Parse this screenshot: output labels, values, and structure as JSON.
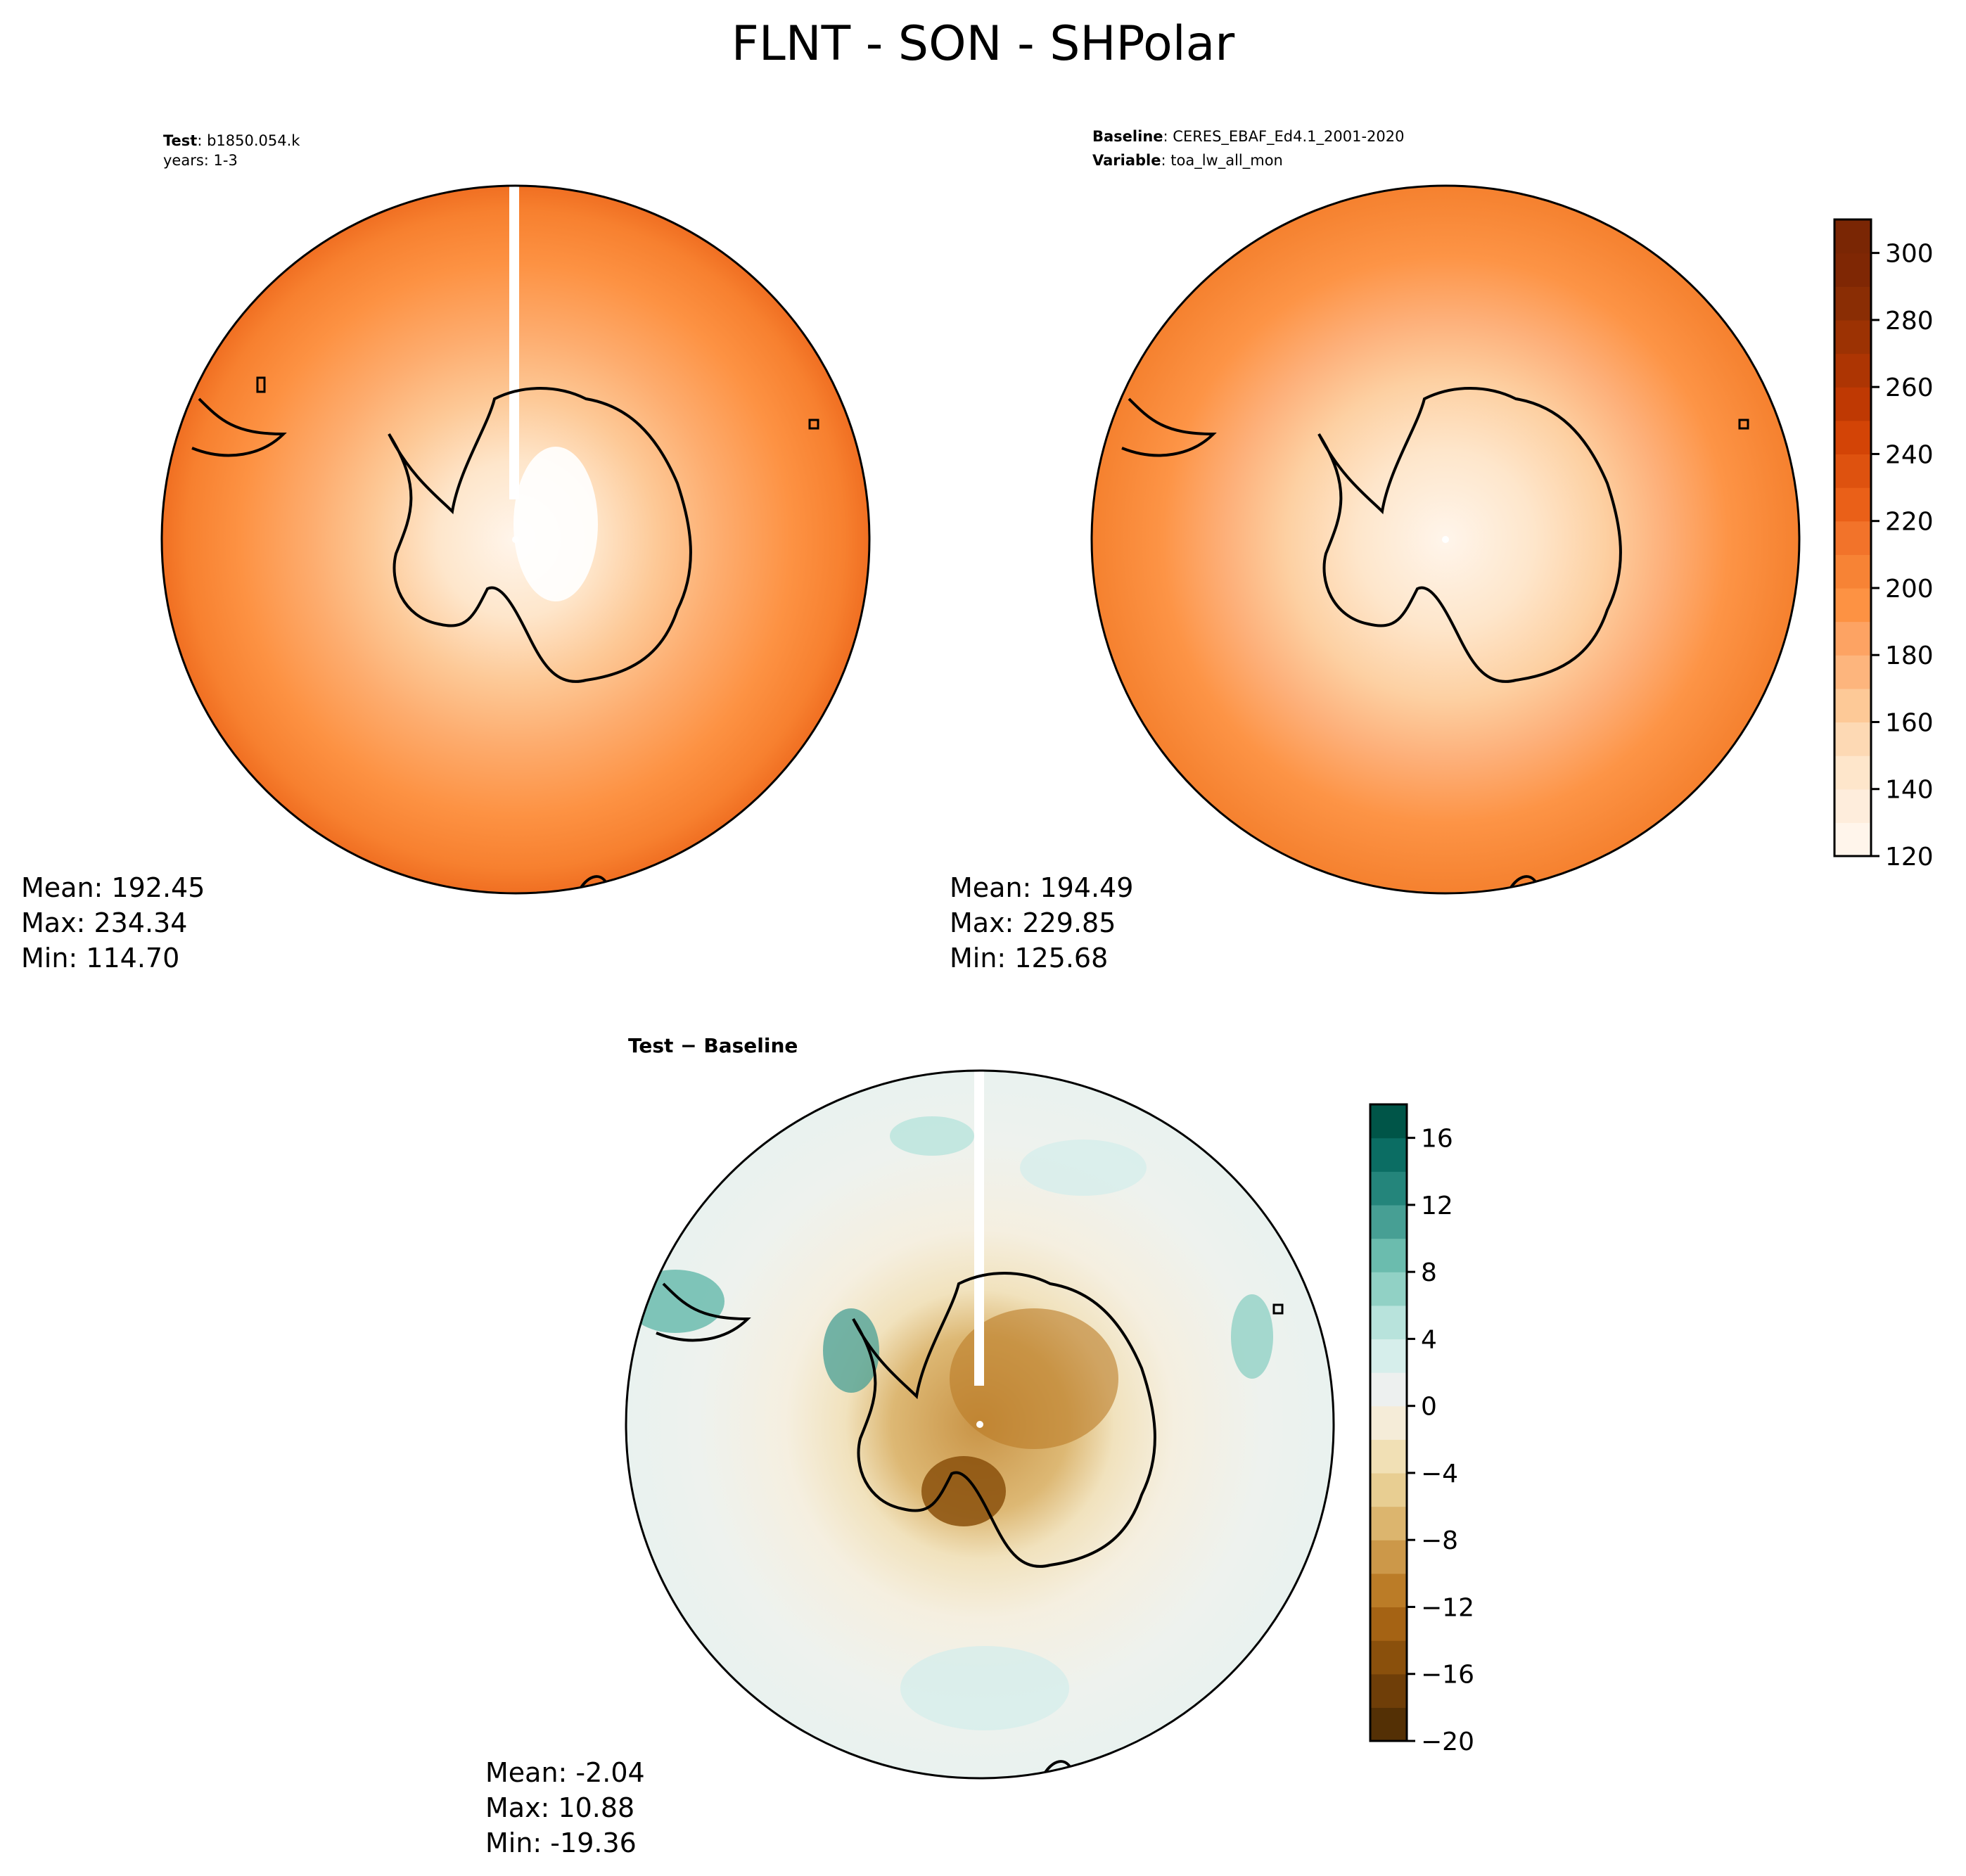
{
  "title": "FLNT - SON - SHPolar",
  "panels": {
    "test": {
      "label_key": "Test",
      "label_value": "b1850.054.k",
      "label_line2": "years: 1-3",
      "stats": {
        "mean": "Mean: 192.45",
        "max": "Max: 234.34",
        "min": "Min: 114.70"
      }
    },
    "baseline": {
      "label_key": "Baseline",
      "label_value": "CERES_EBAF_Ed4.1_2001-2020",
      "label_key2": "Variable",
      "label_value2": "toa_lw_all_mon",
      "stats": {
        "mean": "Mean: 194.49",
        "max": "Max: 229.85",
        "min": "Min: 125.68"
      }
    },
    "diff": {
      "title": "Test − Baseline",
      "stats": {
        "mean": "Mean: -2.04",
        "max": "Max: 10.88",
        "min": "Min: -19.36"
      }
    }
  },
  "chart_data": [
    {
      "type": "heatmap",
      "panel": "test",
      "projection": "south-polar-stereographic",
      "mean": 192.45,
      "max": 234.34,
      "min": 114.7,
      "colormap": "Oranges",
      "vmin": 120,
      "vmax": 310
    },
    {
      "type": "heatmap",
      "panel": "baseline",
      "projection": "south-polar-stereographic",
      "mean": 194.49,
      "max": 229.85,
      "min": 125.68,
      "colormap": "Oranges",
      "vmin": 120,
      "vmax": 310,
      "colorbar": {
        "ticks": [
          120,
          140,
          160,
          180,
          200,
          220,
          240,
          260,
          280,
          300
        ],
        "tick_labels": [
          "120",
          "140",
          "160",
          "180",
          "200",
          "220",
          "240",
          "260",
          "280",
          "300"
        ],
        "range": [
          120,
          310
        ],
        "colors": [
          "#fff5eb",
          "#feeddc",
          "#fee6cb",
          "#fdd9b4",
          "#fdc997",
          "#fdb57d",
          "#fda363",
          "#fd9243",
          "#f78335",
          "#f2732a",
          "#ea6018",
          "#de520f",
          "#d34406",
          "#bf3903",
          "#ad3503",
          "#9c3203",
          "#8a2d04",
          "#7f2704",
          "#7a2604"
        ]
      },
      "map_colors": {
        "coast": "#000000"
      }
    },
    {
      "type": "heatmap",
      "panel": "diff",
      "projection": "south-polar-stereographic",
      "mean": -2.04,
      "max": 10.88,
      "min": -19.36,
      "colormap": "BrBG",
      "vmin": -20,
      "vmax": 18,
      "colorbar": {
        "ticks": [
          -20,
          -16,
          -12,
          -8,
          -4,
          0,
          4,
          8,
          12,
          16
        ],
        "tick_labels": [
          "−20",
          "−16",
          "−12",
          "−8",
          "−4",
          "0",
          "4",
          "8",
          "12",
          "16"
        ],
        "range": [
          -20,
          18
        ],
        "colors": [
          "#543005",
          "#6f3e08",
          "#8a500c",
          "#a56314",
          "#bb7c27",
          "#cc9849",
          "#dcb56e",
          "#e8ce92",
          "#f1e0b5",
          "#f5ecd8",
          "#edf0ef",
          "#d6eeeb",
          "#b8e3dc",
          "#91d1c5",
          "#6bbcae",
          "#479f94",
          "#24857b",
          "#0b6d63",
          "#005548"
        ]
      }
    }
  ]
}
